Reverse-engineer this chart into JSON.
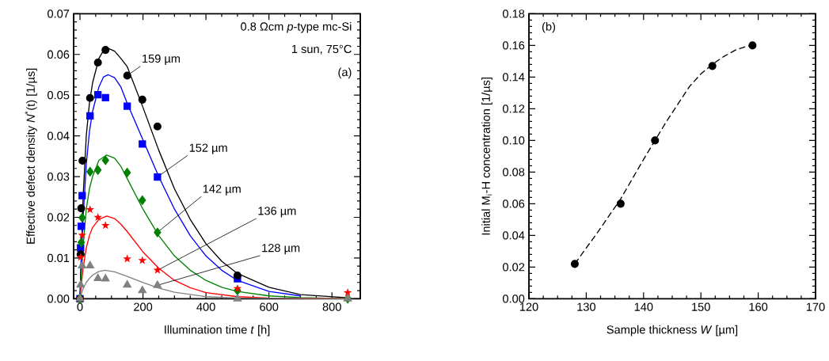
{
  "chart_data": [
    {
      "type": "scatter",
      "xlabel": "Illumination time *t* [h]",
      "ylabel": "Effective defect density *N*$^{*}$(t) [1/µs]",
      "xlim": [
        -20,
        890
      ],
      "ylim": [
        0,
        0.07
      ],
      "xticks": [
        0,
        200,
        400,
        600,
        800
      ],
      "yticks": [
        {
          "value": 0,
          "label": "0.00"
        },
        {
          "value": 0.01,
          "label": "0.01"
        },
        {
          "value": 0.02,
          "label": "0.02"
        },
        {
          "value": 0.03,
          "label": "0.03"
        },
        {
          "value": 0.04,
          "label": "0.04"
        },
        {
          "value": 0.05,
          "label": "0.05"
        },
        {
          "value": 0.06,
          "label": "0.06"
        },
        {
          "value": 0.07,
          "label": "0.07"
        }
      ],
      "grid": false,
      "series": [
        {
          "type": "line",
          "color": "#000000",
          "marker": "none",
          "line_style": "solid",
          "x": [
            0,
            5,
            10,
            20,
            30,
            40,
            60,
            75,
            90,
            110,
            130,
            150,
            200,
            250,
            300,
            350,
            400,
            450,
            500,
            600,
            700,
            860
          ],
          "values": [
            0,
            0.013,
            0.025,
            0.04,
            0.048,
            0.053,
            0.059,
            0.061,
            0.0615,
            0.0608,
            0.059,
            0.057,
            0.047,
            0.0365,
            0.027,
            0.0195,
            0.0135,
            0.0092,
            0.0062,
            0.0028,
            0.001,
            0.0002
          ]
        },
        {
          "type": "line",
          "color": "#0000ff",
          "marker": "none",
          "line_style": "solid",
          "x": [
            0,
            5,
            10,
            20,
            30,
            40,
            60,
            75,
            90,
            110,
            130,
            150,
            200,
            250,
            300,
            350,
            400,
            450,
            500,
            600,
            700
          ],
          "values": [
            0,
            0.011,
            0.02,
            0.033,
            0.041,
            0.046,
            0.052,
            0.0545,
            0.055,
            0.0543,
            0.052,
            0.048,
            0.039,
            0.03,
            0.022,
            0.0155,
            0.0105,
            0.007,
            0.0045,
            0.0018,
            0.0007
          ]
        },
        {
          "type": "line",
          "color": "#008000",
          "marker": "none",
          "line_style": "solid",
          "x": [
            0,
            5,
            10,
            20,
            30,
            40,
            60,
            85,
            110,
            130,
            150,
            200,
            250,
            300,
            350,
            400,
            450,
            500,
            600,
            700,
            860
          ],
          "values": [
            0,
            0.007,
            0.013,
            0.022,
            0.027,
            0.03,
            0.034,
            0.0353,
            0.0345,
            0.0325,
            0.0295,
            0.022,
            0.0155,
            0.0105,
            0.007,
            0.0045,
            0.0028,
            0.0018,
            0.0007,
            0.0003,
            0
          ]
        },
        {
          "type": "line",
          "color": "#ff0000",
          "marker": "none",
          "line_style": "solid",
          "x": [
            0,
            5,
            10,
            20,
            30,
            40,
            60,
            85,
            110,
            130,
            150,
            200,
            250,
            300,
            350,
            400,
            500,
            600,
            860
          ],
          "values": [
            0,
            0.004,
            0.0075,
            0.0125,
            0.0155,
            0.0175,
            0.0195,
            0.0203,
            0.0197,
            0.0183,
            0.0165,
            0.0115,
            0.0075,
            0.0045,
            0.0027,
            0.0015,
            0.0005,
            0.0002,
            0
          ]
        },
        {
          "type": "line",
          "color": "#808080",
          "marker": "none",
          "line_style": "solid",
          "x": [
            0,
            5,
            10,
            20,
            30,
            40,
            60,
            80,
            110,
            150,
            200,
            250,
            300,
            400,
            500,
            860
          ],
          "values": [
            0,
            0.0013,
            0.0025,
            0.004,
            0.005,
            0.0058,
            0.0067,
            0.007,
            0.0066,
            0.0055,
            0.004,
            0.0026,
            0.0016,
            0.0005,
            0.0002,
            0
          ]
        },
        {
          "name": "159 µm",
          "color": "#000000",
          "marker": "circle",
          "x": [
            0,
            2,
            4,
            8,
            32,
            57,
            81,
            150,
            198,
            246,
            500
          ],
          "values": [
            0,
            0.0109,
            0.0222,
            0.0339,
            0.0493,
            0.058,
            0.0611,
            0.0548,
            0.0489,
            0.0423,
            0.0057
          ]
        },
        {
          "name": "152 µm",
          "color": "#0000ff",
          "marker": "square",
          "x": [
            0,
            2,
            4,
            7,
            32,
            57,
            81,
            150,
            198,
            246,
            500
          ],
          "values": [
            0,
            0.0125,
            0.0178,
            0.0253,
            0.0449,
            0.0501,
            0.0494,
            0.0473,
            0.038,
            0.0299,
            0.0049
          ]
        },
        {
          "name": "142 µm",
          "color": "#008000",
          "marker": "diamond",
          "x": [
            0,
            4,
            7,
            32,
            57,
            81,
            150,
            198,
            246,
            500,
            850
          ],
          "values": [
            0,
            0.0138,
            0.0199,
            0.0312,
            0.0316,
            0.034,
            0.031,
            0.0242,
            0.0163,
            0.002,
            0
          ]
        },
        {
          "name": "136 µm",
          "color": "#ff0000",
          "marker": "star",
          "x": [
            0,
            2,
            7,
            32,
            57,
            81,
            150,
            198,
            246,
            500,
            850
          ],
          "values": [
            0,
            0.0102,
            0.0156,
            0.0219,
            0.02,
            0.018,
            0.0098,
            0.0094,
            0.007,
            0.0025,
            0.0015
          ]
        },
        {
          "name": "128 µm",
          "color": "#808080",
          "marker": "triangle",
          "x": [
            0,
            2,
            7,
            32,
            57,
            81,
            150,
            198,
            246,
            500,
            850
          ],
          "values": [
            0,
            0.0034,
            0.0081,
            0.0081,
            0.005,
            0.0049,
            0.0034,
            0.002,
            0.0033,
            0,
            0
          ]
        }
      ],
      "annotations": [
        "0.8 Ωcm *p*-type mc-Si",
        "1 sun, 75°C",
        "(a)"
      ]
    },
    {
      "type": "scatter",
      "xlabel": "Sample thickness *W* [µm]",
      "ylabel": "Initial M$_{i}$-H concentration [1/µs]",
      "xlim": [
        120,
        170
      ],
      "ylim": [
        0,
        0.18
      ],
      "xticks": [
        120,
        130,
        140,
        150,
        160,
        170
      ],
      "yticks": [
        {
          "value": 0,
          "label": "0.00"
        },
        {
          "value": 0.02,
          "label": "0.02"
        },
        {
          "value": 0.04,
          "label": "0.04"
        },
        {
          "value": 0.06,
          "label": "0.06"
        },
        {
          "value": 0.08,
          "label": "0.08"
        },
        {
          "value": 0.1,
          "label": "0.10"
        },
        {
          "value": 0.12,
          "label": "0.12"
        },
        {
          "value": 0.14,
          "label": "0.14"
        },
        {
          "value": 0.16,
          "label": "0.16"
        },
        {
          "value": 0.18,
          "label": "0.18"
        }
      ],
      "grid": false,
      "series": [
        {
          "type": "line",
          "color": "#000000",
          "marker": "none",
          "line_style": "dashed",
          "x": [
            128,
            132,
            136,
            140,
            144,
            148,
            150,
            152,
            154,
            156,
            158,
            159
          ],
          "values": [
            0.022,
            0.042,
            0.063,
            0.088,
            0.112,
            0.134,
            0.142,
            0.148,
            0.153,
            0.157,
            0.1595,
            0.16
          ]
        },
        {
          "color": "#000000",
          "marker": "circle",
          "x": [
            128,
            136,
            142,
            152,
            159
          ],
          "values": [
            0.022,
            0.06,
            0.1,
            0.147,
            0.16
          ]
        }
      ],
      "annotations": [
        "(b)"
      ]
    }
  ]
}
